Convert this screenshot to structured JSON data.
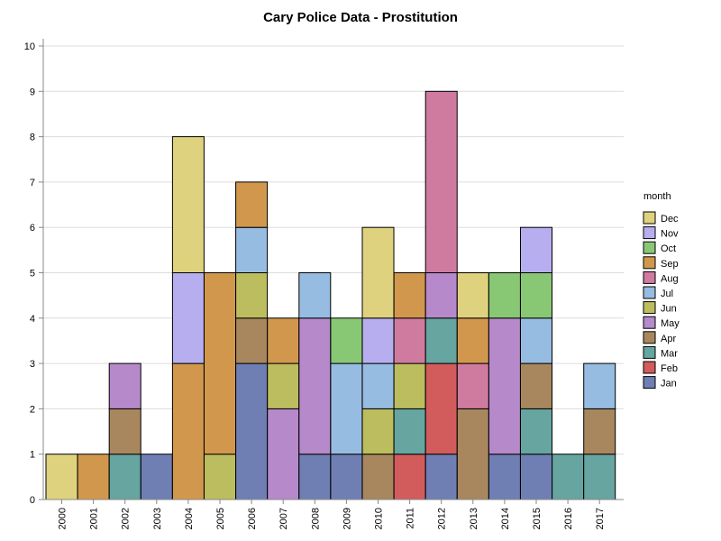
{
  "chart_data": {
    "type": "bar",
    "stacked": true,
    "title": "Cary Police Data - Prostitution",
    "xlabel": "",
    "ylabel": "",
    "ylim": [
      0,
      10
    ],
    "yticks": [
      "0",
      "1",
      "2",
      "3",
      "4",
      "5",
      "6",
      "7",
      "8",
      "9",
      "10"
    ],
    "grid": true,
    "legend": {
      "title": "month",
      "placement": "right"
    },
    "categories": [
      "2000",
      "2001",
      "2002",
      "2003",
      "2004",
      "2005",
      "2006",
      "2007",
      "2008",
      "2009",
      "2010",
      "2011",
      "2012",
      "2013",
      "2014",
      "2015",
      "2016",
      "2017"
    ],
    "series": [
      {
        "name": "Jan",
        "color": "#6f7fb4",
        "values": [
          0,
          0,
          0,
          1,
          0,
          0,
          3,
          0,
          1,
          1,
          0,
          0,
          1,
          0,
          1,
          1,
          0,
          0
        ]
      },
      {
        "name": "Feb",
        "color": "#d25c5c",
        "values": [
          0,
          0,
          0,
          0,
          0,
          0,
          0,
          0,
          0,
          0,
          0,
          1,
          2,
          0,
          0,
          0,
          0,
          0
        ]
      },
      {
        "name": "Mar",
        "color": "#66a5a0",
        "values": [
          0,
          0,
          1,
          0,
          0,
          0,
          0,
          0,
          0,
          0,
          0,
          1,
          1,
          0,
          0,
          1,
          1,
          1
        ]
      },
      {
        "name": "Apr",
        "color": "#a9875e",
        "values": [
          0,
          0,
          1,
          0,
          0,
          0,
          1,
          0,
          0,
          0,
          1,
          0,
          0,
          2,
          0,
          1,
          0,
          1
        ]
      },
      {
        "name": "May",
        "color": "#b689cb",
        "values": [
          0,
          0,
          1,
          0,
          0,
          0,
          0,
          2,
          3,
          0,
          0,
          0,
          1,
          0,
          3,
          0,
          0,
          0
        ]
      },
      {
        "name": "Jun",
        "color": "#bcbd5e",
        "values": [
          0,
          0,
          0,
          0,
          0,
          1,
          1,
          1,
          0,
          0,
          1,
          1,
          0,
          0,
          0,
          0,
          0,
          0
        ]
      },
      {
        "name": "Jul",
        "color": "#97bce1",
        "values": [
          0,
          0,
          0,
          0,
          0,
          0,
          1,
          0,
          1,
          2,
          1,
          0,
          0,
          0,
          0,
          1,
          0,
          1
        ]
      },
      {
        "name": "Aug",
        "color": "#cf7ba0",
        "values": [
          0,
          0,
          0,
          0,
          0,
          0,
          0,
          0,
          0,
          0,
          0,
          1,
          4,
          1,
          0,
          0,
          0,
          0
        ]
      },
      {
        "name": "Sep",
        "color": "#d1984d",
        "values": [
          0,
          1,
          0,
          0,
          3,
          4,
          1,
          1,
          0,
          0,
          0,
          1,
          0,
          1,
          0,
          0,
          0,
          0
        ]
      },
      {
        "name": "Oct",
        "color": "#88c874",
        "values": [
          0,
          0,
          0,
          0,
          0,
          0,
          0,
          0,
          0,
          1,
          0,
          0,
          0,
          0,
          1,
          1,
          0,
          0
        ]
      },
      {
        "name": "Nov",
        "color": "#b7aef0",
        "values": [
          0,
          0,
          0,
          0,
          2,
          0,
          0,
          0,
          0,
          0,
          1,
          0,
          0,
          0,
          0,
          1,
          0,
          0
        ]
      },
      {
        "name": "Dec",
        "color": "#dfd27f",
        "values": [
          1,
          0,
          0,
          0,
          3,
          0,
          0,
          0,
          0,
          0,
          2,
          0,
          0,
          1,
          0,
          0,
          0,
          0
        ]
      }
    ]
  }
}
